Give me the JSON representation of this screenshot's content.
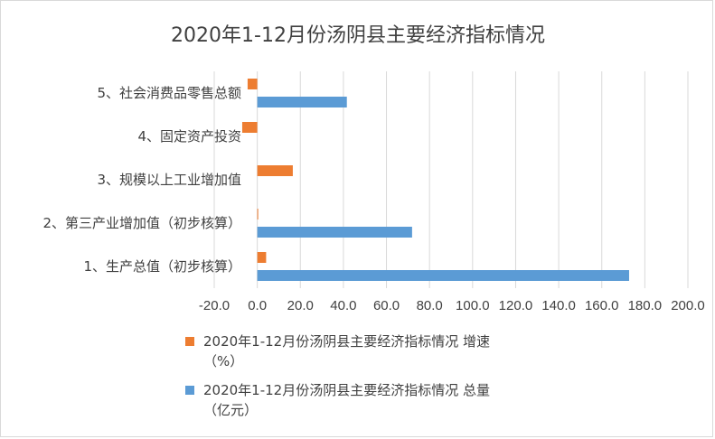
{
  "chart_data": {
    "type": "bar",
    "orientation": "horizontal",
    "title": "2020年1-12月份汤阴县主要经济指标情况",
    "categories": [
      "1、生产总值（初步核算）",
      "2、第三产业增加值（初步核算）",
      "3、规模以上工业增加值",
      "4、固定资产投资",
      "5、社会消费品零售总额"
    ],
    "series": [
      {
        "name": "2020年1-12月份汤阴县主要经济指标情况 增速（%）",
        "legend_lines": [
          "2020年1-12月份汤阴县主要经济指标情况 增速",
          "（%）"
        ],
        "color": "#ed7d31",
        "values": [
          4.1,
          0.4,
          16.5,
          -7.0,
          -4.5
        ]
      },
      {
        "name": "2020年1-12月份汤阴县主要经济指标情况 总量（亿元）",
        "legend_lines": [
          "2020年1-12月份汤阴县主要经济指标情况 总量",
          "（亿元）"
        ],
        "color": "#5b9bd5",
        "values": [
          172.7,
          71.9,
          null,
          null,
          41.6
        ]
      }
    ],
    "xlim": [
      -20,
      200
    ],
    "xticks": [
      "-20.0",
      "0.0",
      "20.0",
      "40.0",
      "60.0",
      "80.0",
      "100.0",
      "120.0",
      "140.0",
      "160.0",
      "180.0",
      "200.0"
    ],
    "grid": true,
    "legend_position": "bottom-left"
  }
}
